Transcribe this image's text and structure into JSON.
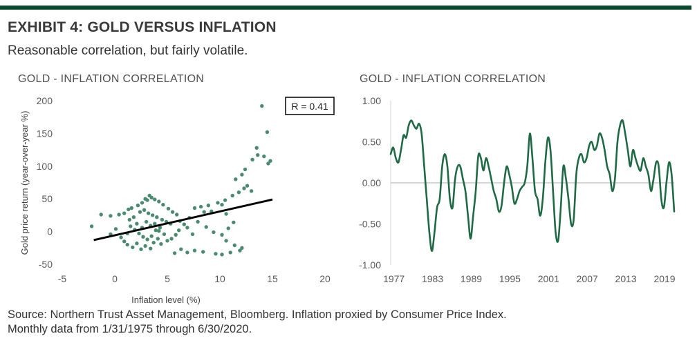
{
  "header": {
    "title": "EXHIBIT 4: GOLD VERSUS INFLATION",
    "subtitle": "Reasonable correlation, but fairly volatile."
  },
  "source": {
    "line1": "Source: Northern Trust Asset Management, Bloomberg. Inflation proxied by Consumer Price Index.",
    "line2": "Monthly data from 1/31/1975 through 6/30/2020."
  },
  "colors": {
    "accent": "#0b4a2f",
    "series": "#1f6a45",
    "point": "#4a8a70",
    "trend": "#000000",
    "zero": "#c8c8c8",
    "axis": "#d0d0d0"
  },
  "chart_data": [
    {
      "type": "scatter",
      "title": "GOLD - INFLATION CORRELATION",
      "xlabel": "Inflation level (%)",
      "ylabel": "Gold price return (year-over-year %)",
      "xlim": [
        -5,
        20
      ],
      "ylim": [
        -50,
        200
      ],
      "xticks": [
        "-5",
        "0",
        "5",
        "10",
        "15",
        "20"
      ],
      "yticks": [
        "-50",
        "0",
        "50",
        "100",
        "150",
        "200"
      ],
      "annotation": "R = 0.41",
      "trendline": {
        "x": [
          -2,
          15
        ],
        "y": [
          -13,
          49
        ]
      },
      "points": [
        [
          14,
          192
        ],
        [
          14.5,
          152
        ],
        [
          13.5,
          128
        ],
        [
          13.6,
          117
        ],
        [
          14.8,
          108
        ],
        [
          14.6,
          104
        ],
        [
          13.1,
          110
        ],
        [
          14.2,
          115
        ],
        [
          12.4,
          95
        ],
        [
          12.1,
          87
        ],
        [
          11.5,
          80
        ],
        [
          12.3,
          66
        ],
        [
          11.8,
          60
        ],
        [
          12.6,
          70
        ],
        [
          13,
          62
        ],
        [
          11.2,
          55
        ],
        [
          10.5,
          48
        ],
        [
          9.8,
          44
        ],
        [
          10.2,
          41
        ],
        [
          8.9,
          40
        ],
        [
          8.2,
          38
        ],
        [
          7.6,
          36
        ],
        [
          9.2,
          31
        ],
        [
          8.5,
          30
        ],
        [
          10.6,
          27
        ],
        [
          11.3,
          14
        ],
        [
          10.8,
          5
        ],
        [
          10.2,
          -5
        ],
        [
          10.6,
          -14
        ],
        [
          11.4,
          -21
        ],
        [
          12.1,
          -25
        ],
        [
          11.9,
          -29
        ],
        [
          11,
          -32
        ],
        [
          10.2,
          -35
        ],
        [
          9.6,
          -34
        ],
        [
          8.4,
          -31
        ],
        [
          7.6,
          -29
        ],
        [
          6.9,
          -32
        ],
        [
          6.3,
          -27
        ],
        [
          5.7,
          -33
        ],
        [
          7.4,
          -4
        ],
        [
          6.9,
          6
        ],
        [
          6.2,
          16
        ],
        [
          5.9,
          26
        ],
        [
          5.5,
          30
        ],
        [
          5.1,
          35
        ],
        [
          4.6,
          41
        ],
        [
          4.2,
          46
        ],
        [
          3.8,
          49
        ],
        [
          3.5,
          52
        ],
        [
          3.3,
          55
        ],
        [
          2.9,
          50
        ],
        [
          3.1,
          48
        ],
        [
          2.6,
          44
        ],
        [
          2.2,
          40
        ],
        [
          1.6,
          36
        ],
        [
          1.3,
          34
        ],
        [
          0.9,
          28
        ],
        [
          0.4,
          26
        ],
        [
          -0.4,
          24
        ],
        [
          -1.3,
          26
        ],
        [
          -2.2,
          8
        ],
        [
          -0.4,
          -4
        ],
        [
          0.1,
          4
        ],
        [
          0.6,
          -9
        ],
        [
          0.9,
          -15
        ],
        [
          1.2,
          -20
        ],
        [
          1.7,
          -24
        ],
        [
          2.1,
          -18
        ],
        [
          2.5,
          -27
        ],
        [
          2.9,
          -22
        ],
        [
          3.4,
          -26
        ],
        [
          3.7,
          -17
        ],
        [
          4.1,
          -11
        ],
        [
          4.4,
          -19
        ],
        [
          4.7,
          -4
        ],
        [
          5,
          -14
        ],
        [
          5.4,
          -11
        ],
        [
          5.8,
          -5
        ],
        [
          6.1,
          2
        ],
        [
          6.6,
          11
        ],
        [
          7.1,
          21
        ],
        [
          7.9,
          15
        ],
        [
          8.7,
          7
        ],
        [
          9.4,
          -1
        ],
        [
          1.4,
          18
        ],
        [
          1.8,
          22
        ],
        [
          2.4,
          30
        ],
        [
          2.8,
          33
        ],
        [
          3.2,
          28
        ],
        [
          3.6,
          25
        ],
        [
          4,
          22
        ],
        [
          4.5,
          18
        ],
        [
          4.9,
          15
        ],
        [
          5.3,
          12
        ],
        [
          1.5,
          8
        ],
        [
          1.9,
          3
        ],
        [
          2.3,
          -3
        ],
        [
          2.7,
          -8
        ],
        [
          3.1,
          -12
        ],
        [
          3.5,
          -7
        ],
        [
          3.9,
          2
        ],
        [
          4.3,
          6
        ],
        [
          1.2,
          -3
        ],
        [
          2.1,
          12
        ],
        [
          2.6,
          6
        ],
        [
          3,
          15
        ],
        [
          3.4,
          9
        ],
        [
          3.8,
          12
        ],
        [
          4.2,
          1
        ]
      ]
    },
    {
      "type": "line",
      "title": "GOLD - INFLATION CORRELATION",
      "ylim": [
        -1.0,
        1.0
      ],
      "yticks": [
        "1.00",
        "0.50",
        "0.00",
        "-0.50",
        "-1.00"
      ],
      "xticks": [
        "1977",
        "1983",
        "1989",
        "1995",
        "2001",
        "2007",
        "2013",
        "2019"
      ],
      "xrange": [
        1976.5,
        2020.5
      ],
      "series": [
        {
          "name": "Gold - Inflation correlation",
          "x": [
            1976.5,
            1976.9,
            1977.3,
            1977.7,
            1978.1,
            1978.5,
            1978.9,
            1979.3,
            1979.7,
            1980.1,
            1980.5,
            1980.9,
            1981.3,
            1981.7,
            1982.1,
            1982.5,
            1982.9,
            1983.3,
            1983.7,
            1984.1,
            1984.5,
            1984.9,
            1985.3,
            1985.7,
            1986.1,
            1986.5,
            1986.9,
            1987.3,
            1987.7,
            1988.1,
            1988.5,
            1988.9,
            1989.3,
            1989.7,
            1990.1,
            1990.5,
            1990.9,
            1991.3,
            1991.7,
            1992.1,
            1992.5,
            1992.9,
            1993.3,
            1993.7,
            1994.1,
            1994.5,
            1994.9,
            1995.3,
            1995.7,
            1996.1,
            1996.5,
            1996.9,
            1997.3,
            1997.7,
            1998.1,
            1998.5,
            1998.9,
            1999.3,
            1999.7,
            2000.1,
            2000.5,
            2000.9,
            2001.3,
            2001.7,
            2002.1,
            2002.5,
            2002.9,
            2003.3,
            2003.7,
            2004.1,
            2004.5,
            2004.9,
            2005.3,
            2005.7,
            2006.1,
            2006.5,
            2006.9,
            2007.3,
            2007.7,
            2008.1,
            2008.5,
            2008.9,
            2009.3,
            2009.7,
            2010.1,
            2010.5,
            2010.9,
            2011.3,
            2011.7,
            2012.1,
            2012.5,
            2012.9,
            2013.3,
            2013.7,
            2014.1,
            2014.5,
            2014.9,
            2015.3,
            2015.7,
            2016.1,
            2016.5,
            2016.9,
            2017.3,
            2017.7,
            2018.1,
            2018.5,
            2018.9,
            2019.3,
            2019.7,
            2020.1,
            2020.5
          ],
          "values": [
            0.35,
            0.43,
            0.3,
            0.25,
            0.4,
            0.58,
            0.55,
            0.7,
            0.76,
            0.7,
            0.66,
            0.72,
            0.6,
            0.2,
            -0.2,
            -0.6,
            -0.83,
            -0.6,
            -0.3,
            -0.2,
            0.2,
            0.35,
            0.2,
            -0.2,
            -0.3,
            0.05,
            0.2,
            0.2,
            0.05,
            -0.1,
            -0.4,
            -0.68,
            -0.4,
            -0.1,
            0.33,
            0.3,
            0.15,
            0.3,
            0.2,
            0.05,
            -0.1,
            -0.2,
            -0.35,
            -0.28,
            0.0,
            0.2,
            0.1,
            -0.05,
            -0.25,
            -0.2,
            -0.1,
            -0.05,
            0.0,
            0.2,
            0.6,
            0.3,
            -0.1,
            -0.2,
            -0.4,
            -0.2,
            0.25,
            0.55,
            0.4,
            -0.1,
            -0.6,
            -0.7,
            -0.3,
            0.2,
            0.05,
            -0.2,
            -0.5,
            -0.45,
            0.1,
            0.3,
            0.35,
            0.25,
            0.3,
            0.45,
            0.5,
            0.4,
            0.45,
            0.6,
            0.55,
            0.4,
            0.2,
            0.1,
            -0.1,
            0.05,
            0.5,
            0.7,
            0.76,
            0.6,
            0.4,
            0.2,
            0.4,
            0.3,
            0.2,
            0.15,
            0.3,
            0.2,
            0.1,
            -0.1,
            0.05,
            0.25,
            0.2,
            -0.2,
            -0.3,
            0.0,
            0.25,
            0.1,
            -0.35
          ]
        }
      ]
    }
  ]
}
